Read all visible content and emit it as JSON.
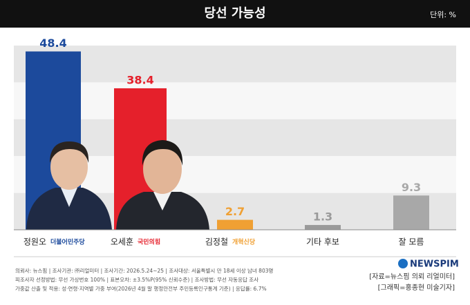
{
  "chart_data": {
    "type": "bar",
    "title": "당선 가능성",
    "unit": "단위: %",
    "categories": [
      "정원오",
      "오세훈",
      "김정철",
      "기타 후보",
      "잘 모름"
    ],
    "party_labels": [
      "더불어민주당",
      "국민의힘",
      "개혁신당",
      null,
      null
    ],
    "values": [
      48.4,
      38.4,
      2.7,
      1.3,
      9.3
    ],
    "colors": [
      "#1c4a9c",
      "#e5202b",
      "#f0a033",
      "#9a9a9a",
      "#a8a8a8"
    ],
    "ylim": [
      0,
      50
    ],
    "notes": [
      "의뢰사: 뉴스핌 | 조사기관: ㈜리얼미터 | 조사기간: 2026.5.24~25 | 조사대상: 서울특별시 만 18세 이상 남녀 803명",
      "피조사자 선정방법: 무선 가상번호 100% | 표본오차: ±3.5%P(95% 신뢰수준) | 조사방법: 무선 자동응답 조사",
      "가중값 산출 및 적용: 성·연령·지역별 가중 부여(2026년 4월 말 행정안전부 주민등록인구통계 기준) | 응답률: 6.7%"
    ],
    "logo": "NEWSPIM",
    "source": [
      "[자료=뉴스핌 의뢰 리얼미터]",
      "[그래픽=홍종현 미술기자]"
    ]
  }
}
